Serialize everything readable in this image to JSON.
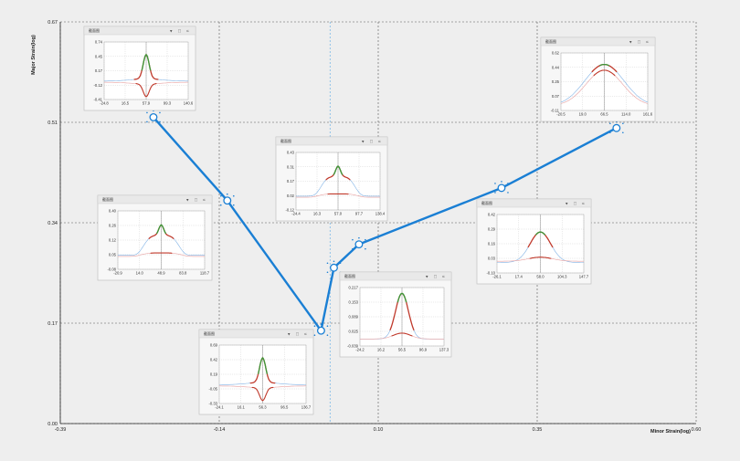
{
  "chart_data": {
    "type": "line",
    "xlabel": "Minor Strain(log)",
    "ylabel": "Major Strain(log)",
    "x_ticks": [
      "-0.39",
      "-0.14",
      "0.10",
      "0.35",
      "0.60"
    ],
    "y_ticks": [
      "0.00",
      "0.17",
      "0.34",
      "0.51",
      "0.67"
    ],
    "xlim": [
      -0.39,
      0.6
    ],
    "ylim": [
      0.0,
      0.67
    ],
    "grid": true,
    "vertical_reference_x": 0.03,
    "series": [
      {
        "points": [
          {
            "x": -0.245,
            "y": 0.511
          },
          {
            "x": -0.13,
            "y": 0.372
          },
          {
            "x": 0.016,
            "y": 0.155
          },
          {
            "x": 0.036,
            "y": 0.26
          },
          {
            "x": 0.075,
            "y": 0.299
          },
          {
            "x": 0.297,
            "y": 0.393
          },
          {
            "x": 0.476,
            "y": 0.493
          }
        ]
      }
    ],
    "insets": [
      {
        "title": "截面图",
        "xticks": [
          "-24.8",
          "16.5",
          "57.9",
          "99.3",
          "140.6"
        ],
        "yticks": [
          "0.74",
          "0.45",
          "0.17",
          "-0.12",
          "-0.41"
        ],
        "shape": "spike"
      },
      {
        "title": "截面图",
        "xticks": [
          "-20.5",
          "19.0",
          "66.5",
          "114.0",
          "161.6"
        ],
        "yticks": [
          "0.62",
          "0.44",
          "0.25",
          "0.07",
          "-0.11"
        ],
        "shape": "dome"
      },
      {
        "title": "截面图",
        "xticks": [
          "-24.4",
          "16.3",
          "57.0",
          "97.7",
          "138.4"
        ],
        "yticks": [
          "0.43",
          "0.31",
          "0.17",
          "0.02",
          "-0.12"
        ],
        "shape": "plateau"
      },
      {
        "title": "截面图",
        "xticks": [
          "-20.9",
          "14.0",
          "48.9",
          "83.8",
          "118.7"
        ],
        "yticks": [
          "0.40",
          "0.26",
          "0.12",
          "0.05",
          "-0.08"
        ],
        "shape": "plateau"
      },
      {
        "title": "截面图",
        "xticks": [
          "-26.1",
          "17.4",
          "58.0",
          "104.3",
          "147.7"
        ],
        "yticks": [
          "0.42",
          "0.29",
          "0.16",
          "0.03",
          "-0.10"
        ],
        "shape": "peak"
      },
      {
        "title": "截面图",
        "xticks": [
          "-24.1",
          "16.1",
          "56.3",
          "96.5",
          "136.7"
        ],
        "yticks": [
          "0.69",
          "0.42",
          "0.19",
          "-0.05",
          "-0.33"
        ],
        "shape": "spike"
      },
      {
        "title": "截面图",
        "xticks": [
          "-24.2",
          "16.2",
          "56.5",
          "96.9",
          "137.3"
        ],
        "yticks": [
          "0.217",
          "0.153",
          "0.089",
          "0.025",
          "-0.039"
        ],
        "shape": "narrow"
      }
    ]
  }
}
